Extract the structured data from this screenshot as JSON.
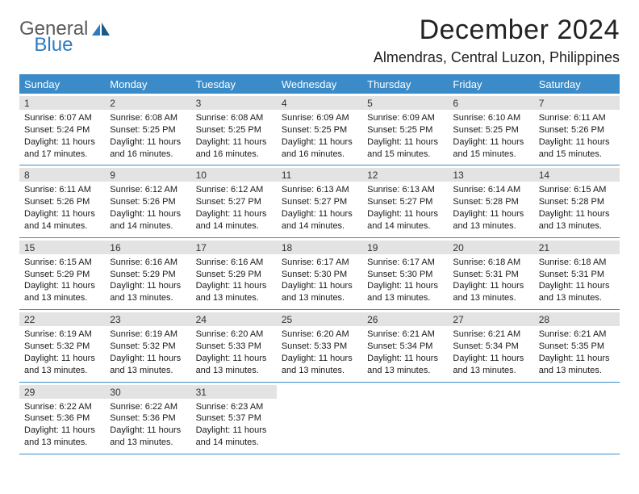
{
  "logo": {
    "part1": "General",
    "part2": "Blue"
  },
  "title": "December 2024",
  "location": "Almendras, Central Luzon, Philippines",
  "colors": {
    "header_bg": "#3b8bc8",
    "header_text": "#ffffff",
    "daynum_bg": "#e3e3e3",
    "row_border": "#3b8bc8",
    "logo_gray": "#5a5a5a",
    "logo_blue": "#2d7cc0",
    "body_text": "#1a1a1a",
    "page_bg": "#ffffff"
  },
  "typography": {
    "title_fontsize": 34,
    "location_fontsize": 18,
    "dayheader_fontsize": 13,
    "daynum_fontsize": 12,
    "body_fontsize": 11
  },
  "layout": {
    "columns": 7,
    "rows": 5
  },
  "day_headers": [
    "Sunday",
    "Monday",
    "Tuesday",
    "Wednesday",
    "Thursday",
    "Friday",
    "Saturday"
  ],
  "weeks": [
    [
      {
        "num": "1",
        "sunrise": "Sunrise: 6:07 AM",
        "sunset": "Sunset: 5:24 PM",
        "daylight1": "Daylight: 11 hours",
        "daylight2": "and 17 minutes."
      },
      {
        "num": "2",
        "sunrise": "Sunrise: 6:08 AM",
        "sunset": "Sunset: 5:25 PM",
        "daylight1": "Daylight: 11 hours",
        "daylight2": "and 16 minutes."
      },
      {
        "num": "3",
        "sunrise": "Sunrise: 6:08 AM",
        "sunset": "Sunset: 5:25 PM",
        "daylight1": "Daylight: 11 hours",
        "daylight2": "and 16 minutes."
      },
      {
        "num": "4",
        "sunrise": "Sunrise: 6:09 AM",
        "sunset": "Sunset: 5:25 PM",
        "daylight1": "Daylight: 11 hours",
        "daylight2": "and 16 minutes."
      },
      {
        "num": "5",
        "sunrise": "Sunrise: 6:09 AM",
        "sunset": "Sunset: 5:25 PM",
        "daylight1": "Daylight: 11 hours",
        "daylight2": "and 15 minutes."
      },
      {
        "num": "6",
        "sunrise": "Sunrise: 6:10 AM",
        "sunset": "Sunset: 5:25 PM",
        "daylight1": "Daylight: 11 hours",
        "daylight2": "and 15 minutes."
      },
      {
        "num": "7",
        "sunrise": "Sunrise: 6:11 AM",
        "sunset": "Sunset: 5:26 PM",
        "daylight1": "Daylight: 11 hours",
        "daylight2": "and 15 minutes."
      }
    ],
    [
      {
        "num": "8",
        "sunrise": "Sunrise: 6:11 AM",
        "sunset": "Sunset: 5:26 PM",
        "daylight1": "Daylight: 11 hours",
        "daylight2": "and 14 minutes."
      },
      {
        "num": "9",
        "sunrise": "Sunrise: 6:12 AM",
        "sunset": "Sunset: 5:26 PM",
        "daylight1": "Daylight: 11 hours",
        "daylight2": "and 14 minutes."
      },
      {
        "num": "10",
        "sunrise": "Sunrise: 6:12 AM",
        "sunset": "Sunset: 5:27 PM",
        "daylight1": "Daylight: 11 hours",
        "daylight2": "and 14 minutes."
      },
      {
        "num": "11",
        "sunrise": "Sunrise: 6:13 AM",
        "sunset": "Sunset: 5:27 PM",
        "daylight1": "Daylight: 11 hours",
        "daylight2": "and 14 minutes."
      },
      {
        "num": "12",
        "sunrise": "Sunrise: 6:13 AM",
        "sunset": "Sunset: 5:27 PM",
        "daylight1": "Daylight: 11 hours",
        "daylight2": "and 14 minutes."
      },
      {
        "num": "13",
        "sunrise": "Sunrise: 6:14 AM",
        "sunset": "Sunset: 5:28 PM",
        "daylight1": "Daylight: 11 hours",
        "daylight2": "and 13 minutes."
      },
      {
        "num": "14",
        "sunrise": "Sunrise: 6:15 AM",
        "sunset": "Sunset: 5:28 PM",
        "daylight1": "Daylight: 11 hours",
        "daylight2": "and 13 minutes."
      }
    ],
    [
      {
        "num": "15",
        "sunrise": "Sunrise: 6:15 AM",
        "sunset": "Sunset: 5:29 PM",
        "daylight1": "Daylight: 11 hours",
        "daylight2": "and 13 minutes."
      },
      {
        "num": "16",
        "sunrise": "Sunrise: 6:16 AM",
        "sunset": "Sunset: 5:29 PM",
        "daylight1": "Daylight: 11 hours",
        "daylight2": "and 13 minutes."
      },
      {
        "num": "17",
        "sunrise": "Sunrise: 6:16 AM",
        "sunset": "Sunset: 5:29 PM",
        "daylight1": "Daylight: 11 hours",
        "daylight2": "and 13 minutes."
      },
      {
        "num": "18",
        "sunrise": "Sunrise: 6:17 AM",
        "sunset": "Sunset: 5:30 PM",
        "daylight1": "Daylight: 11 hours",
        "daylight2": "and 13 minutes."
      },
      {
        "num": "19",
        "sunrise": "Sunrise: 6:17 AM",
        "sunset": "Sunset: 5:30 PM",
        "daylight1": "Daylight: 11 hours",
        "daylight2": "and 13 minutes."
      },
      {
        "num": "20",
        "sunrise": "Sunrise: 6:18 AM",
        "sunset": "Sunset: 5:31 PM",
        "daylight1": "Daylight: 11 hours",
        "daylight2": "and 13 minutes."
      },
      {
        "num": "21",
        "sunrise": "Sunrise: 6:18 AM",
        "sunset": "Sunset: 5:31 PM",
        "daylight1": "Daylight: 11 hours",
        "daylight2": "and 13 minutes."
      }
    ],
    [
      {
        "num": "22",
        "sunrise": "Sunrise: 6:19 AM",
        "sunset": "Sunset: 5:32 PM",
        "daylight1": "Daylight: 11 hours",
        "daylight2": "and 13 minutes."
      },
      {
        "num": "23",
        "sunrise": "Sunrise: 6:19 AM",
        "sunset": "Sunset: 5:32 PM",
        "daylight1": "Daylight: 11 hours",
        "daylight2": "and 13 minutes."
      },
      {
        "num": "24",
        "sunrise": "Sunrise: 6:20 AM",
        "sunset": "Sunset: 5:33 PM",
        "daylight1": "Daylight: 11 hours",
        "daylight2": "and 13 minutes."
      },
      {
        "num": "25",
        "sunrise": "Sunrise: 6:20 AM",
        "sunset": "Sunset: 5:33 PM",
        "daylight1": "Daylight: 11 hours",
        "daylight2": "and 13 minutes."
      },
      {
        "num": "26",
        "sunrise": "Sunrise: 6:21 AM",
        "sunset": "Sunset: 5:34 PM",
        "daylight1": "Daylight: 11 hours",
        "daylight2": "and 13 minutes."
      },
      {
        "num": "27",
        "sunrise": "Sunrise: 6:21 AM",
        "sunset": "Sunset: 5:34 PM",
        "daylight1": "Daylight: 11 hours",
        "daylight2": "and 13 minutes."
      },
      {
        "num": "28",
        "sunrise": "Sunrise: 6:21 AM",
        "sunset": "Sunset: 5:35 PM",
        "daylight1": "Daylight: 11 hours",
        "daylight2": "and 13 minutes."
      }
    ],
    [
      {
        "num": "29",
        "sunrise": "Sunrise: 6:22 AM",
        "sunset": "Sunset: 5:36 PM",
        "daylight1": "Daylight: 11 hours",
        "daylight2": "and 13 minutes."
      },
      {
        "num": "30",
        "sunrise": "Sunrise: 6:22 AM",
        "sunset": "Sunset: 5:36 PM",
        "daylight1": "Daylight: 11 hours",
        "daylight2": "and 13 minutes."
      },
      {
        "num": "31",
        "sunrise": "Sunrise: 6:23 AM",
        "sunset": "Sunset: 5:37 PM",
        "daylight1": "Daylight: 11 hours",
        "daylight2": "and 14 minutes."
      },
      null,
      null,
      null,
      null
    ]
  ]
}
